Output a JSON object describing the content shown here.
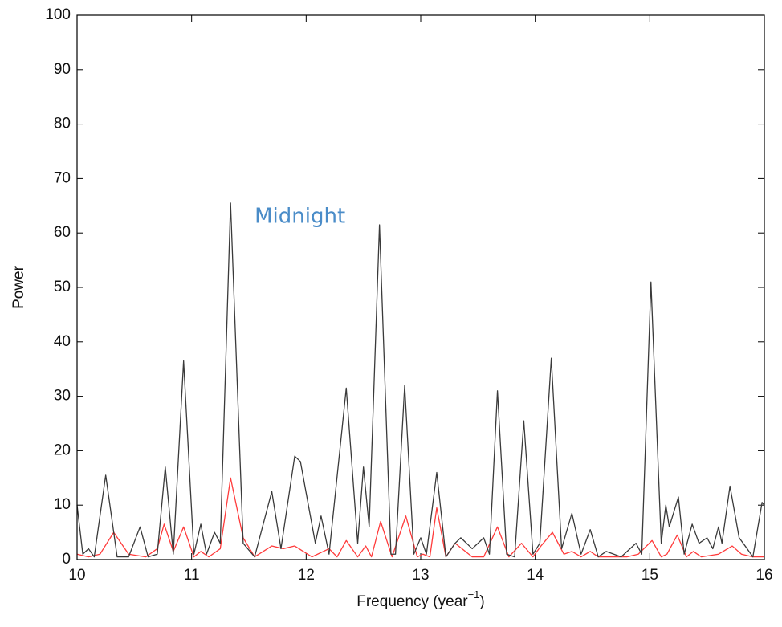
{
  "chart_data": {
    "type": "line",
    "x_label_parts": [
      "Frequency (year",
      "−1",
      ")"
    ],
    "y_label": "Power",
    "annotation": "Midnight",
    "annotation_at": [
      11.55,
      63
    ],
    "xlim": [
      10,
      16
    ],
    "ylim": [
      0,
      100
    ],
    "xticks": [
      10,
      11,
      12,
      13,
      14,
      15,
      16
    ],
    "yticks": [
      0,
      10,
      20,
      30,
      40,
      50,
      60,
      70,
      80,
      90,
      100
    ],
    "grid": false,
    "series": [
      {
        "color": "#3a3a3a",
        "x": [
          10.0,
          10.05,
          10.1,
          10.15,
          10.25,
          10.35,
          10.45,
          10.55,
          10.62,
          10.7,
          10.77,
          10.84,
          10.93,
          11.02,
          11.08,
          11.13,
          11.2,
          11.25,
          11.34,
          11.45,
          11.55,
          11.7,
          11.78,
          11.9,
          11.95,
          12.08,
          12.13,
          12.2,
          12.35,
          12.45,
          12.5,
          12.55,
          12.64,
          12.74,
          12.78,
          12.86,
          12.94,
          13.0,
          13.05,
          13.14,
          13.22,
          13.3,
          13.35,
          13.45,
          13.55,
          13.6,
          13.67,
          13.75,
          13.82,
          13.9,
          13.98,
          14.04,
          14.14,
          14.23,
          14.32,
          14.4,
          14.48,
          14.55,
          14.62,
          14.75,
          14.88,
          14.93,
          15.01,
          15.1,
          15.14,
          15.17,
          15.25,
          15.3,
          15.37,
          15.43,
          15.5,
          15.55,
          15.6,
          15.63,
          15.7,
          15.78,
          15.85,
          15.9,
          15.98,
          16.0
        ],
        "values": [
          10,
          1,
          2,
          0.5,
          15.5,
          0.5,
          0.5,
          6,
          0.5,
          1,
          17,
          1,
          36.5,
          1,
          6.5,
          1,
          5,
          3,
          65.5,
          3,
          0.5,
          12.5,
          2,
          19,
          18,
          3,
          8,
          1,
          31.5,
          3,
          17,
          6,
          61.5,
          1,
          1,
          32,
          1,
          4,
          1,
          16,
          0.5,
          3,
          4,
          2,
          4,
          1,
          31,
          1,
          0.5,
          25.5,
          1,
          3,
          37,
          2,
          8.5,
          1,
          5.5,
          0.5,
          1.5,
          0.5,
          3,
          1,
          51,
          3,
          10,
          6,
          11.5,
          1,
          6.5,
          3,
          4,
          2,
          6,
          3,
          13.5,
          4,
          2,
          0.5,
          10.5,
          10
        ]
      },
      {
        "color": "#ff3b3b",
        "x": [
          10.0,
          10.1,
          10.2,
          10.32,
          10.45,
          10.6,
          10.7,
          10.76,
          10.84,
          10.93,
          11.02,
          11.08,
          11.15,
          11.25,
          11.34,
          11.45,
          11.55,
          11.7,
          11.8,
          11.9,
          12.05,
          12.2,
          12.27,
          12.35,
          12.45,
          12.52,
          12.57,
          12.65,
          12.75,
          12.87,
          12.97,
          13.02,
          13.08,
          13.14,
          13.22,
          13.3,
          13.45,
          13.55,
          13.67,
          13.77,
          13.88,
          13.98,
          14.05,
          14.15,
          14.25,
          14.32,
          14.4,
          14.48,
          14.55,
          14.65,
          14.8,
          14.9,
          15.02,
          15.1,
          15.15,
          15.24,
          15.32,
          15.38,
          15.45,
          15.6,
          15.72,
          15.8,
          15.9,
          16.0
        ],
        "values": [
          1,
          0.5,
          1,
          5,
          1,
          0.5,
          2,
          6.5,
          1.5,
          6,
          0.5,
          1.5,
          0.5,
          2,
          15,
          4,
          0.5,
          2.5,
          2,
          2.5,
          0.5,
          2,
          0.5,
          3.5,
          0.5,
          2.5,
          0.5,
          7,
          0.5,
          8,
          0.5,
          1,
          0.5,
          9.5,
          0.5,
          3,
          0.5,
          0.5,
          6,
          0.5,
          3,
          0.5,
          2.5,
          5,
          1,
          1.5,
          0.5,
          1.5,
          0.5,
          0.5,
          0.5,
          1,
          3.5,
          0.5,
          1,
          4.5,
          0.5,
          1.5,
          0.5,
          1,
          2.5,
          1,
          0.5,
          0.5
        ]
      }
    ]
  }
}
